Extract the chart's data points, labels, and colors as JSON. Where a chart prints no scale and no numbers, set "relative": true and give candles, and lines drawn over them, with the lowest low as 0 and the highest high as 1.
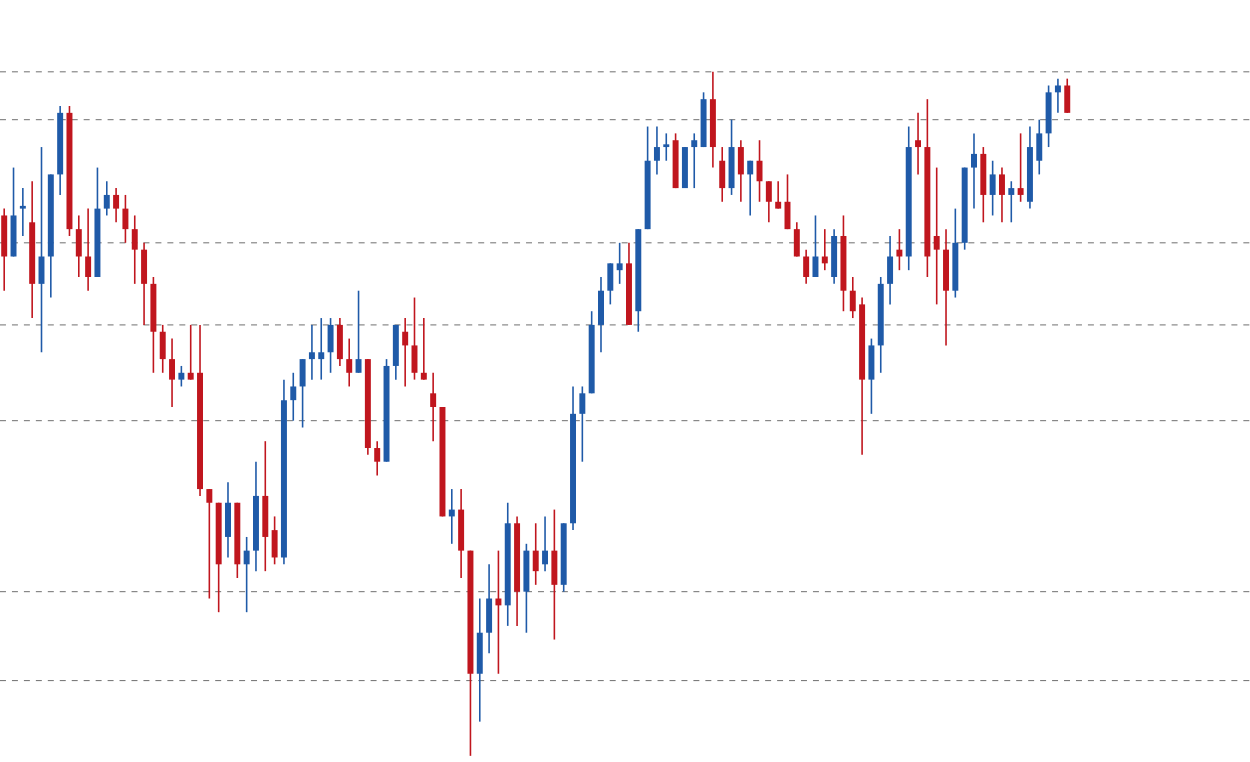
{
  "chart_data": {
    "type": "candlestick",
    "relative": true,
    "categories": [
      null,
      null,
      null,
      null,
      null,
      null,
      null,
      null,
      null,
      null,
      null,
      null,
      null,
      null,
      null,
      null,
      null,
      null,
      null,
      null,
      null,
      null,
      null,
      null,
      null,
      null,
      null,
      null,
      null,
      null,
      null,
      null,
      null,
      null,
      null,
      null,
      null,
      null,
      null,
      null,
      null,
      null,
      null,
      null,
      null,
      null,
      null,
      null,
      null,
      null,
      null,
      null,
      null,
      null,
      null,
      null,
      null,
      null,
      null,
      null,
      null,
      null,
      null,
      null,
      null,
      null,
      null,
      null,
      null,
      null,
      null,
      null,
      null,
      null,
      null,
      null,
      null,
      null,
      null,
      null,
      null,
      null,
      null,
      null,
      null,
      null,
      null,
      null,
      null,
      null,
      null,
      null,
      null,
      null,
      null,
      null,
      null,
      null,
      null,
      null,
      null,
      null,
      null,
      null,
      null,
      null,
      null,
      null,
      null,
      null,
      null,
      null,
      null,
      null,
      null
    ],
    "ohlc": [
      [
        0.79,
        0.8,
        0.68,
        0.73
      ],
      [
        0.73,
        0.86,
        0.73,
        0.79
      ],
      [
        0.8,
        0.83,
        0.76,
        0.8
      ],
      [
        0.78,
        0.84,
        0.64,
        0.69
      ],
      [
        0.69,
        0.89,
        0.59,
        0.73
      ],
      [
        0.73,
        0.85,
        0.67,
        0.85
      ],
      [
        0.85,
        0.95,
        0.82,
        0.94
      ],
      [
        0.94,
        0.95,
        0.76,
        0.77
      ],
      [
        0.77,
        0.79,
        0.7,
        0.73
      ],
      [
        0.73,
        0.8,
        0.68,
        0.7
      ],
      [
        0.7,
        0.86,
        0.7,
        0.8
      ],
      [
        0.8,
        0.84,
        0.79,
        0.82
      ],
      [
        0.82,
        0.83,
        0.78,
        0.8
      ],
      [
        0.8,
        0.82,
        0.75,
        0.77
      ],
      [
        0.77,
        0.79,
        0.69,
        0.74
      ],
      [
        0.74,
        0.75,
        0.63,
        0.69
      ],
      [
        0.69,
        0.7,
        0.56,
        0.62
      ],
      [
        0.62,
        0.63,
        0.56,
        0.58
      ],
      [
        0.58,
        0.61,
        0.51,
        0.55
      ],
      [
        0.55,
        0.57,
        0.54,
        0.56
      ],
      [
        0.56,
        0.63,
        0.55,
        0.55
      ],
      [
        0.56,
        0.63,
        0.38,
        0.39
      ],
      [
        0.39,
        0.39,
        0.23,
        0.37
      ],
      [
        0.37,
        0.37,
        0.21,
        0.28
      ],
      [
        0.32,
        0.4,
        0.29,
        0.37
      ],
      [
        0.37,
        0.37,
        0.26,
        0.28
      ],
      [
        0.28,
        0.32,
        0.21,
        0.3
      ],
      [
        0.3,
        0.43,
        0.27,
        0.38
      ],
      [
        0.38,
        0.46,
        0.27,
        0.32
      ],
      [
        0.33,
        0.35,
        0.28,
        0.29
      ],
      [
        0.29,
        0.55,
        0.28,
        0.52
      ],
      [
        0.52,
        0.56,
        0.49,
        0.54
      ],
      [
        0.54,
        0.58,
        0.48,
        0.58
      ],
      [
        0.58,
        0.63,
        0.55,
        0.59
      ],
      [
        0.58,
        0.64,
        0.55,
        0.59
      ],
      [
        0.59,
        0.64,
        0.56,
        0.63
      ],
      [
        0.63,
        0.64,
        0.57,
        0.58
      ],
      [
        0.58,
        0.61,
        0.54,
        0.56
      ],
      [
        0.56,
        0.68,
        0.56,
        0.58
      ],
      [
        0.58,
        0.58,
        0.44,
        0.45
      ],
      [
        0.45,
        0.46,
        0.41,
        0.43
      ],
      [
        0.43,
        0.58,
        0.43,
        0.57
      ],
      [
        0.57,
        0.63,
        0.55,
        0.63
      ],
      [
        0.62,
        0.64,
        0.54,
        0.6
      ],
      [
        0.6,
        0.67,
        0.55,
        0.56
      ],
      [
        0.56,
        0.64,
        0.55,
        0.55
      ],
      [
        0.53,
        0.56,
        0.46,
        0.51
      ],
      [
        0.51,
        0.51,
        0.35,
        0.35
      ],
      [
        0.35,
        0.39,
        0.31,
        0.36
      ],
      [
        0.36,
        0.39,
        0.26,
        0.3
      ],
      [
        0.3,
        0.3,
        0.0,
        0.12
      ],
      [
        0.12,
        0.23,
        0.05,
        0.18
      ],
      [
        0.18,
        0.28,
        0.15,
        0.23
      ],
      [
        0.23,
        0.3,
        0.12,
        0.22
      ],
      [
        0.22,
        0.37,
        0.19,
        0.34
      ],
      [
        0.34,
        0.35,
        0.19,
        0.24
      ],
      [
        0.24,
        0.31,
        0.18,
        0.3
      ],
      [
        0.3,
        0.34,
        0.25,
        0.27
      ],
      [
        0.28,
        0.35,
        0.27,
        0.3
      ],
      [
        0.3,
        0.36,
        0.17,
        0.25
      ],
      [
        0.25,
        0.34,
        0.24,
        0.34
      ],
      [
        0.34,
        0.54,
        0.33,
        0.5
      ],
      [
        0.5,
        0.54,
        0.43,
        0.53
      ],
      [
        0.53,
        0.65,
        0.53,
        0.63
      ],
      [
        0.63,
        0.7,
        0.59,
        0.68
      ],
      [
        0.68,
        0.72,
        0.66,
        0.72
      ],
      [
        0.71,
        0.75,
        0.69,
        0.72
      ],
      [
        0.72,
        0.75,
        0.63,
        0.63
      ],
      [
        0.65,
        0.77,
        0.62,
        0.77
      ],
      [
        0.77,
        0.92,
        0.77,
        0.87
      ],
      [
        0.87,
        0.92,
        0.85,
        0.89
      ],
      [
        0.89,
        0.91,
        0.87,
        0.89
      ],
      [
        0.9,
        0.91,
        0.83,
        0.83
      ],
      [
        0.83,
        0.89,
        0.83,
        0.89
      ],
      [
        0.89,
        0.91,
        0.83,
        0.9
      ],
      [
        0.89,
        0.97,
        0.89,
        0.96
      ],
      [
        0.96,
        1.0,
        0.86,
        0.89
      ],
      [
        0.87,
        0.89,
        0.81,
        0.83
      ],
      [
        0.83,
        0.93,
        0.82,
        0.89
      ],
      [
        0.89,
        0.9,
        0.81,
        0.85
      ],
      [
        0.85,
        0.87,
        0.79,
        0.87
      ],
      [
        0.87,
        0.9,
        0.81,
        0.84
      ],
      [
        0.84,
        0.84,
        0.78,
        0.81
      ],
      [
        0.81,
        0.84,
        0.8,
        0.8
      ],
      [
        0.81,
        0.85,
        0.77,
        0.77
      ],
      [
        0.77,
        0.78,
        0.73,
        0.73
      ],
      [
        0.73,
        0.74,
        0.69,
        0.7
      ],
      [
        0.7,
        0.79,
        0.7,
        0.73
      ],
      [
        0.73,
        0.77,
        0.71,
        0.72
      ],
      [
        0.7,
        0.77,
        0.69,
        0.76
      ],
      [
        0.76,
        0.79,
        0.65,
        0.68
      ],
      [
        0.68,
        0.7,
        0.64,
        0.65
      ],
      [
        0.66,
        0.67,
        0.44,
        0.55
      ],
      [
        0.55,
        0.61,
        0.5,
        0.6
      ],
      [
        0.6,
        0.7,
        0.56,
        0.69
      ],
      [
        0.69,
        0.76,
        0.66,
        0.73
      ],
      [
        0.74,
        0.77,
        0.71,
        0.73
      ],
      [
        0.73,
        0.92,
        0.71,
        0.89
      ],
      [
        0.9,
        0.94,
        0.85,
        0.89
      ],
      [
        0.89,
        0.96,
        0.7,
        0.73
      ],
      [
        0.76,
        0.86,
        0.66,
        0.74
      ],
      [
        0.74,
        0.77,
        0.6,
        0.68
      ],
      [
        0.68,
        0.8,
        0.67,
        0.75
      ],
      [
        0.75,
        0.86,
        0.74,
        0.86
      ],
      [
        0.86,
        0.91,
        0.8,
        0.88
      ],
      [
        0.88,
        0.89,
        0.78,
        0.82
      ],
      [
        0.82,
        0.87,
        0.79,
        0.85
      ],
      [
        0.85,
        0.86,
        0.78,
        0.82
      ],
      [
        0.82,
        0.84,
        0.78,
        0.83
      ],
      [
        0.83,
        0.91,
        0.81,
        0.82
      ],
      [
        0.81,
        0.92,
        0.8,
        0.89
      ],
      [
        0.87,
        0.93,
        0.85,
        0.91
      ],
      [
        0.91,
        0.98,
        0.89,
        0.97
      ],
      [
        0.97,
        0.99,
        0.94,
        0.98
      ],
      [
        0.98,
        0.99,
        0.94,
        0.94
      ]
    ],
    "colors": [
      "#c0161e",
      "#1f5aa8",
      "#1f5aa8",
      "#c0161e",
      "#1f5aa8",
      "#1f5aa8",
      "#1f5aa8",
      "#c0161e",
      "#c0161e",
      "#c0161e",
      "#1f5aa8",
      "#1f5aa8",
      "#c0161e",
      "#c0161e",
      "#c0161e",
      "#c0161e",
      "#c0161e",
      "#c0161e",
      "#c0161e",
      "#1f5aa8",
      "#c0161e",
      "#c0161e",
      "#c0161e",
      "#c0161e",
      "#1f5aa8",
      "#c0161e",
      "#1f5aa8",
      "#1f5aa8",
      "#c0161e",
      "#c0161e",
      "#1f5aa8",
      "#1f5aa8",
      "#1f5aa8",
      "#1f5aa8",
      "#1f5aa8",
      "#1f5aa8",
      "#c0161e",
      "#c0161e",
      "#1f5aa8",
      "#c0161e",
      "#c0161e",
      "#1f5aa8",
      "#1f5aa8",
      "#c0161e",
      "#c0161e",
      "#c0161e",
      "#c0161e",
      "#c0161e",
      "#1f5aa8",
      "#c0161e",
      "#c0161e",
      "#1f5aa8",
      "#1f5aa8",
      "#c0161e",
      "#1f5aa8",
      "#c0161e",
      "#1f5aa8",
      "#c0161e",
      "#1f5aa8",
      "#c0161e",
      "#1f5aa8",
      "#1f5aa8",
      "#1f5aa8",
      "#1f5aa8",
      "#1f5aa8",
      "#1f5aa8",
      "#1f5aa8",
      "#c0161e",
      "#1f5aa8",
      "#1f5aa8",
      "#1f5aa8",
      "#1f5aa8",
      "#c0161e",
      "#1f5aa8",
      "#1f5aa8",
      "#1f5aa8",
      "#c0161e",
      "#c0161e",
      "#1f5aa8",
      "#c0161e",
      "#1f5aa8",
      "#c0161e",
      "#c0161e",
      "#c0161e",
      "#c0161e",
      "#c0161e",
      "#c0161e",
      "#1f5aa8",
      "#c0161e",
      "#1f5aa8",
      "#c0161e",
      "#c0161e",
      "#c0161e",
      "#1f5aa8",
      "#1f5aa8",
      "#1f5aa8",
      "#c0161e",
      "#1f5aa8",
      "#c0161e",
      "#c0161e",
      "#c0161e",
      "#c0161e",
      "#1f5aa8",
      "#1f5aa8",
      "#1f5aa8",
      "#c0161e",
      "#1f5aa8",
      "#c0161e",
      "#1f5aa8",
      "#c0161e",
      "#1f5aa8",
      "#1f5aa8",
      "#1f5aa8",
      "#1f5aa8",
      "#c0161e"
    ],
    "ref_lines": [
      {
        "axis": "y",
        "value": 1.0,
        "color": "#6e6e6e",
        "line_style": "dashed"
      },
      {
        "axis": "y",
        "value": 0.93,
        "color": "#6e6e6e",
        "line_style": "dashed"
      },
      {
        "axis": "y",
        "value": 0.75,
        "color": "#6e6e6e",
        "line_style": "dashed"
      },
      {
        "axis": "y",
        "value": 0.63,
        "color": "#6e6e6e",
        "line_style": "dashed"
      },
      {
        "axis": "y",
        "value": 0.49,
        "color": "#6e6e6e",
        "line_style": "dashed"
      },
      {
        "axis": "y",
        "value": 0.24,
        "color": "#6e6e6e",
        "line_style": "dashed"
      },
      {
        "axis": "y",
        "value": 0.11,
        "color": "#6e6e6e",
        "line_style": "dashed"
      }
    ]
  }
}
